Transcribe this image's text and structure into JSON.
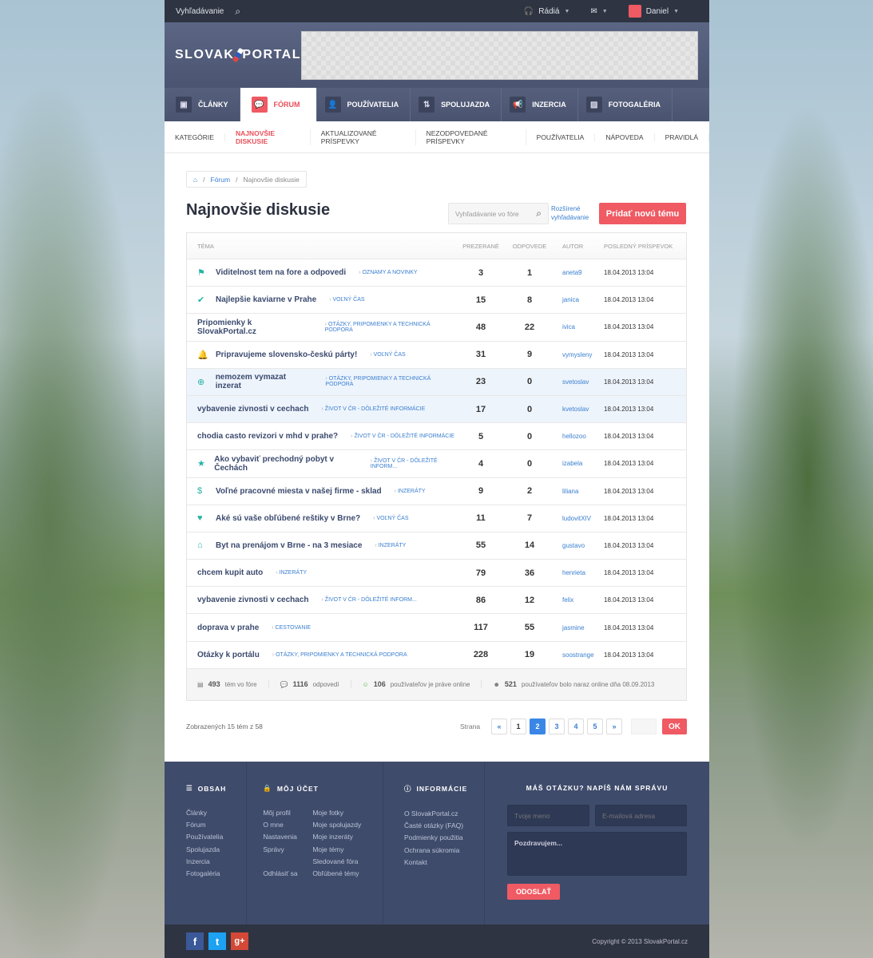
{
  "topbar": {
    "search_label": "Vyhľadávanie",
    "radio_label": "Rádiá",
    "user_name": "Daniel"
  },
  "header": {
    "logo_left": "SLOVAK",
    "logo_right": "PORTAL"
  },
  "nav": [
    {
      "label": "ČLÁNKY",
      "icon": "▣"
    },
    {
      "label": "FÓRUM",
      "icon": "💬"
    },
    {
      "label": "POUŽÍVATELIA",
      "icon": "👤"
    },
    {
      "label": "SPOLUJAZDA",
      "icon": "⇅"
    },
    {
      "label": "INZERCIA",
      "icon": "📢"
    },
    {
      "label": "FOTOGALÉRIA",
      "icon": "▨"
    }
  ],
  "subnav": [
    "KATEGÓRIE",
    "NAJNOVŠIE DISKUSIE",
    "AKTUALIZOVANÉ PRÍSPEVKY",
    "NEZODPOVEDANÉ PRÍSPEVKY",
    "POUŽÍVATELIA",
    "NÁPOVEDA",
    "PRAVIDLÁ"
  ],
  "breadcrumb": {
    "forum": "Fórum",
    "current": "Najnovšie diskusie"
  },
  "page_title": "Najnovšie diskusie",
  "search": {
    "placeholder": "Vyhľadávanie vo fóre",
    "advanced_line1": "Rozšírené",
    "advanced_line2": "vyhľadávanie"
  },
  "add_topic_label": "Pridať novú tému",
  "table": {
    "headers": [
      "TÉMA",
      "PREZERANÉ",
      "ODPOVEDE",
      "AUTOR",
      "POSLEDNÝ PRÍSPEVOK"
    ],
    "rows": [
      {
        "icon": "flag",
        "title": "Viditelnost tem na fore a odpovedi",
        "category": "OZNAMY A NOVINKY",
        "views": "3",
        "replies": "1",
        "author": "aneta9",
        "last": "18.04.2013  13:04"
      },
      {
        "icon": "check-circle",
        "title": "Najlepšie kaviarne v Prahe",
        "category": "VOĽNÝ ČAS",
        "views": "15",
        "replies": "8",
        "author": "janica",
        "last": "18.04.2013  13:04"
      },
      {
        "icon": "",
        "title": "Pripomienky k SlovakPortal.cz",
        "category": "OTÁZKY, PRIPOMIENKY A TECHNICKÁ PODPORA",
        "views": "48",
        "replies": "22",
        "author": "ivica",
        "last": "18.04.2013  13:04"
      },
      {
        "icon": "bell",
        "title": "Pripravujeme slovensko-českú párty!",
        "category": "VOĽNÝ ČAS",
        "views": "31",
        "replies": "9",
        "author": "vymysleny",
        "last": "18.04.2013  13:04"
      },
      {
        "icon": "lifebuoy",
        "title": "nemozem vymazat inzerat",
        "category": "OTÁZKY, PRIPOMIENKY A TECHNICKÁ PODPORA",
        "views": "23",
        "replies": "0",
        "author": "svetoslav",
        "last": "18.04.2013  13:04",
        "highlight": true
      },
      {
        "icon": "",
        "title": "vybavenie zivnosti v cechach",
        "category": "ŽIVOT V ČR - DÔLEŽITÉ INFORMÁCIE",
        "views": "17",
        "replies": "0",
        "author": "kvetoslav",
        "last": "18.04.2013  13:04",
        "highlight": true
      },
      {
        "icon": "",
        "title": "chodia casto revizori v mhd v prahe?",
        "category": "ŽIVOT V ČR - DÔLEŽITÉ INFORMÁCIE",
        "views": "5",
        "replies": "0",
        "author": "hellozoo",
        "last": "18.04.2013  13:04"
      },
      {
        "icon": "star",
        "title": "Ako vybaviť prechodný pobyt v Čechách",
        "category": "ŽIVOT V ČR - DÔLEŽITÉ INFORM...",
        "views": "4",
        "replies": "0",
        "author": "izabela",
        "last": "18.04.2013  13:04"
      },
      {
        "icon": "dollar",
        "title": "Voľné pracovné miesta v našej firme - sklad",
        "category": "INZERÁTY",
        "views": "9",
        "replies": "2",
        "author": "liliana",
        "last": "18.04.2013  13:04"
      },
      {
        "icon": "heart",
        "title": "Aké sú vaše obľúbené reštiky v Brne?",
        "category": "VOĽNÝ ČAS",
        "views": "11",
        "replies": "7",
        "author": "ludovitXIV",
        "last": "18.04.2013  13:04"
      },
      {
        "icon": "home",
        "title": "Byt na prenájom v Brne - na 3 mesiace",
        "category": "INZERÁTY",
        "views": "55",
        "replies": "14",
        "author": "gustavo",
        "last": "18.04.2013  13:04"
      },
      {
        "icon": "",
        "title": "chcem kupit auto",
        "category": "INZERÁTY",
        "views": "79",
        "replies": "36",
        "author": "henrieta",
        "last": "18.04.2013  13:04"
      },
      {
        "icon": "",
        "title": "vybavenie zivnosti v cechach",
        "category": "ŽIVOT V ČR - DÔLEŽITÉ INFORM...",
        "views": "86",
        "replies": "12",
        "author": "felix",
        "last": "18.04.2013  13:04"
      },
      {
        "icon": "",
        "title": "doprava v prahe",
        "category": "CESTOVANIE",
        "views": "117",
        "replies": "55",
        "author": "jasmine",
        "last": "18.04.2013  13:04"
      },
      {
        "icon": "",
        "title": "Otázky k portálu",
        "category": "OTÁZKY, PRIPOMIENKY A TECHNICKÁ PODPORA",
        "views": "228",
        "replies": "19",
        "author": "soostrange",
        "last": "18.04.2013  13:04"
      }
    ]
  },
  "stats": [
    {
      "value": "493",
      "label": "tém vo fóre",
      "icon": "▤"
    },
    {
      "value": "1116",
      "label": "odpovedí",
      "icon": "💬"
    },
    {
      "value": "106",
      "label": "používateľov je práve online",
      "icon": "☺"
    },
    {
      "value": "521",
      "label": "používateľov bolo naraz online dňa 08.09.2013",
      "icon": "☻"
    }
  ],
  "pagination": {
    "shown": "Zobrazených 15 tém z 58",
    "label": "Strana",
    "prev": "«",
    "next": "»",
    "pages": [
      "1",
      "2",
      "3",
      "4",
      "5"
    ],
    "current": "2",
    "ok": "OK"
  },
  "footer": {
    "obsah": {
      "title": "OBSAH",
      "links": [
        "Články",
        "Fórum",
        "Používatelia",
        "Spolujazda",
        "Inzercia",
        "Fotogaléria"
      ]
    },
    "account": {
      "title": "MÔJ ÚČET",
      "col1": [
        "Môj profil",
        "O mne",
        "Nastavenia",
        "Správy",
        "",
        "Odhlásiť sa"
      ],
      "col2": [
        "Moje fotky",
        "Moje spolujazdy",
        "Moje inzeráty",
        "Moje témy",
        "Sledované fóra",
        "Obľúbené témy"
      ]
    },
    "info": {
      "title": "INFORMÁCIE",
      "links": [
        "O SlovakPortal.cz",
        "Časté otázky (FAQ)",
        "Podmienky použitia",
        "Ochrana súkromia",
        "Kontakt"
      ]
    },
    "form": {
      "title": "MÁŠ OTÁZKU? NAPÍŠ NÁM SPRÁVU",
      "name_placeholder": "Tvoje meno",
      "email_placeholder": "E-mailová adresa",
      "message_value": "Pozdravujem...",
      "send": "ODOSLAŤ"
    },
    "copyright": "Copyright © 2013 SlovakPortal.cz"
  },
  "colors": {
    "accent": "#ef5a63",
    "link": "#3a7fd0",
    "footer": "#3f4b6b",
    "icon": "#26b3a6"
  }
}
